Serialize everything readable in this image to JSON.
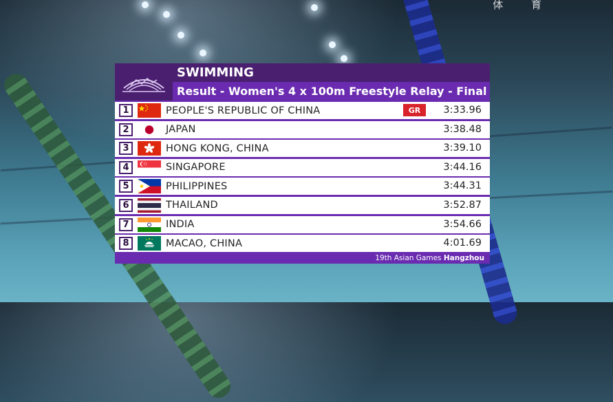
{
  "watermark": "体 育",
  "header": {
    "sport": "SWIMMING",
    "event": "Result - Women's 4 x 100m Freestyle Relay - Final",
    "logo_icon": "hangzhou-asian-games-logo"
  },
  "results": [
    {
      "rank": "1",
      "country": "PEOPLE'S REPUBLIC OF CHINA",
      "flag": "china-flag",
      "time": "3:33.96",
      "badge": "GR"
    },
    {
      "rank": "2",
      "country": "JAPAN",
      "flag": "japan-flag",
      "time": "3:38.48"
    },
    {
      "rank": "3",
      "country": "HONG KONG, CHINA",
      "flag": "hong-kong-flag",
      "time": "3:39.10"
    },
    {
      "rank": "4",
      "country": "SINGAPORE",
      "flag": "singapore-flag",
      "time": "3:44.16"
    },
    {
      "rank": "5",
      "country": "PHILIPPINES",
      "flag": "philippines-flag",
      "time": "3:44.31"
    },
    {
      "rank": "6",
      "country": "THAILAND",
      "flag": "thailand-flag",
      "time": "3:52.87"
    },
    {
      "rank": "7",
      "country": "INDIA",
      "flag": "india-flag",
      "time": "3:54.66"
    },
    {
      "rank": "8",
      "country": "MACAO, CHINA",
      "flag": "macao-flag",
      "time": "4:01.69"
    }
  ],
  "footer": {
    "games": "19th Asian Games",
    "city": "Hangzhou"
  },
  "colors": {
    "dark_purple": "#4b1f70",
    "purple": "#6a2bb0",
    "record_red": "#d8232a"
  }
}
